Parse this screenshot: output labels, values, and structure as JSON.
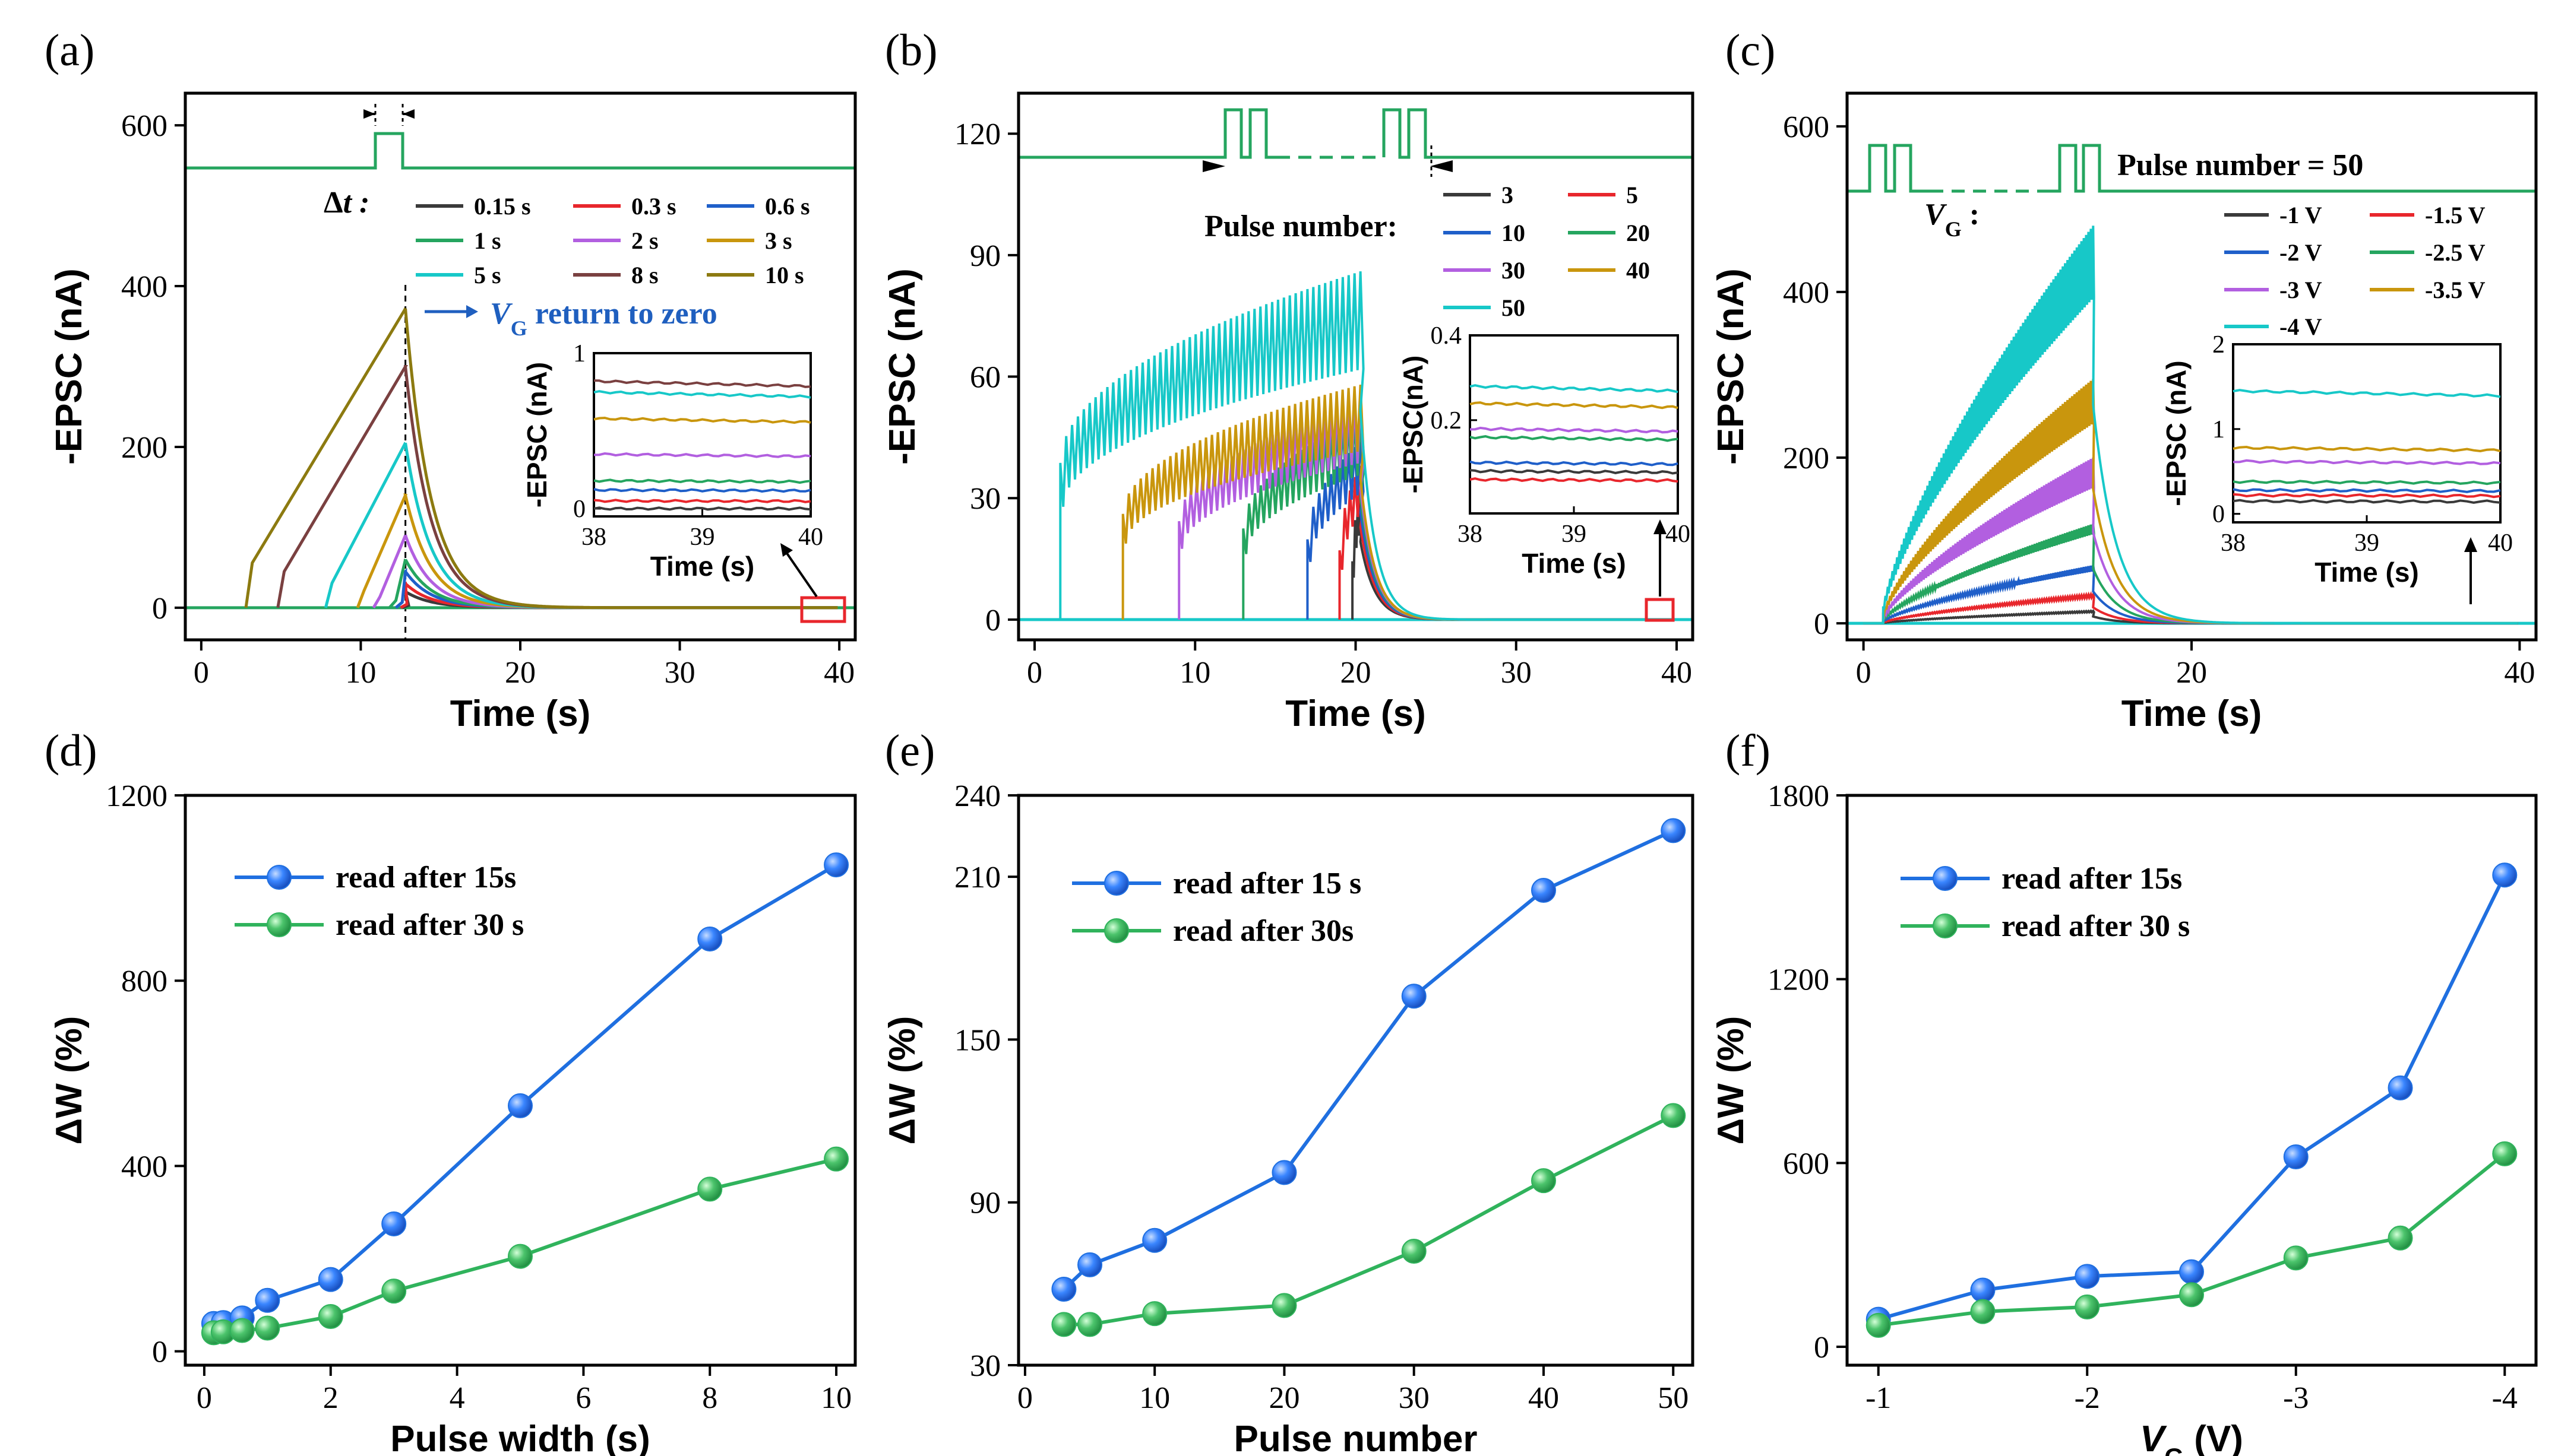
{
  "panels": {
    "a": {
      "label": "(a)"
    },
    "b": {
      "label": "(b)"
    },
    "c": {
      "label": "(c)"
    },
    "d": {
      "label": "(d)"
    },
    "e": {
      "label": "(e)"
    },
    "f": {
      "label": "(f)"
    }
  },
  "colors": {
    "black": "#3a3a3a",
    "red": "#e8262c",
    "blue": "#1f5fc9",
    "green": "#25a55f",
    "purple": "#b25fe0",
    "gold": "#c9960d",
    "teal": "#17c8c8",
    "brown": "#7a4040",
    "olive": "#8c7a10",
    "pulse": "#25a55f",
    "scatterBlue": "#1f6fe0",
    "scatterGreen": "#30b35c",
    "annot": "#1f5fbf"
  },
  "chart_data": [
    {
      "id": "a",
      "type": "line",
      "xlabel": "Time (s)",
      "ylabel": "-EPSC (nA)",
      "xlim": [
        -1,
        41
      ],
      "ylim": [
        -40,
        640
      ],
      "xticks": [
        0,
        10,
        20,
        30,
        40
      ],
      "yticks": [
        0,
        200,
        400,
        600
      ],
      "xtick_labels": [
        "0",
        "10",
        "20",
        "30",
        "40"
      ],
      "ytick_labels": [
        "0",
        "200",
        "400",
        "600"
      ],
      "legend_title": "Δt :",
      "series": [
        {
          "name": "0.15 s",
          "start": 12.6,
          "peak": 20,
          "color": "black"
        },
        {
          "name": "0.3 s",
          "start": 12.5,
          "peak": 30,
          "color": "red"
        },
        {
          "name": "0.6 s",
          "start": 12.2,
          "peak": 45,
          "color": "blue"
        },
        {
          "name": "1 s",
          "start": 11.8,
          "peak": 60,
          "color": "green"
        },
        {
          "name": "2 s",
          "start": 10.8,
          "peak": 90,
          "color": "purple"
        },
        {
          "name": "3 s",
          "start": 9.8,
          "peak": 140,
          "color": "gold"
        },
        {
          "name": "5 s",
          "start": 7.8,
          "peak": 205,
          "color": "teal"
        },
        {
          "name": "8 s",
          "start": 4.8,
          "peak": 300,
          "color": "brown"
        },
        {
          "name": "10 s",
          "start": 2.8,
          "peak": 372,
          "color": "olive"
        }
      ],
      "annotation": "V",
      "annotation_sub": "G",
      "annotation_rest": " return to zero",
      "inset": {
        "xlabel": "Time (s)",
        "ylabel": "-EPSC (nA)",
        "xticks": [
          "38",
          "39",
          "40"
        ],
        "yticks": [
          "0",
          "1"
        ],
        "levels": [
          0.0,
          0.05,
          0.12,
          0.18,
          0.35,
          0.58,
          0.75,
          0.82
        ]
      }
    },
    {
      "id": "b",
      "type": "line",
      "xlabel": "Time (s)",
      "ylabel": "-EPSC (nA)",
      "xlim": [
        -1,
        41
      ],
      "ylim": [
        -5,
        130
      ],
      "xticks": [
        0,
        10,
        20,
        30,
        40
      ],
      "yticks": [
        0,
        30,
        60,
        90,
        120
      ],
      "xtick_labels": [
        "0",
        "10",
        "20",
        "30",
        "40"
      ],
      "ytick_labels": [
        "0",
        "30",
        "60",
        "90",
        "120"
      ],
      "legend_title": "Pulse number:",
      "series": [
        {
          "name": "3",
          "start": 19.8,
          "peak": 32,
          "color": "black"
        },
        {
          "name": "5",
          "start": 19.0,
          "peak": 38,
          "color": "red"
        },
        {
          "name": "10",
          "start": 17.0,
          "peak": 44,
          "color": "blue"
        },
        {
          "name": "20",
          "start": 13.0,
          "peak": 50,
          "color": "green"
        },
        {
          "name": "30",
          "start": 9.0,
          "peak": 54,
          "color": "purple"
        },
        {
          "name": "40",
          "start": 5.5,
          "peak": 58,
          "color": "gold"
        },
        {
          "name": "50",
          "start": 1.6,
          "peak": 86,
          "color": "teal"
        }
      ],
      "inset": {
        "xlabel": "Time (s)",
        "ylabel": "-EPSC(nA)",
        "xticks": [
          "38",
          "39",
          "40"
        ],
        "yticks": [
          "0.2",
          "0.4"
        ],
        "levels": [
          0.06,
          0.08,
          0.1,
          0.16,
          0.18,
          0.24,
          0.28
        ]
      }
    },
    {
      "id": "c",
      "type": "line",
      "xlabel": "Time (s)",
      "ylabel": "-EPSC (nA)",
      "xlim": [
        -1,
        41
      ],
      "ylim": [
        -20,
        640
      ],
      "xticks": [
        0,
        20,
        40
      ],
      "yticks": [
        0,
        200,
        400,
        600
      ],
      "xtick_labels": [
        "0",
        "20",
        "40"
      ],
      "ytick_labels": [
        "0",
        "200",
        "400",
        "600"
      ],
      "legend_title": "V",
      "legend_title_sub": "G",
      "legend_title_rest": " :",
      "pulse_label": "Pulse number = 50",
      "series": [
        {
          "name": "-1 V",
          "peak": 15,
          "color": "black"
        },
        {
          "name": "-1.5 V",
          "peak": 35,
          "color": "red"
        },
        {
          "name": "-2 V",
          "peak": 70,
          "color": "blue"
        },
        {
          "name": "-2.5 V",
          "peak": 120,
          "color": "green"
        },
        {
          "name": "-3 V",
          "peak": 200,
          "color": "purple"
        },
        {
          "name": "-3.5 V",
          "peak": 295,
          "color": "gold"
        },
        {
          "name": "-4 V",
          "peak": 480,
          "color": "teal"
        }
      ],
      "inset": {
        "xlabel": "Time (s)",
        "ylabel": "-EPSC (nA)",
        "xticks": [
          "38",
          "39",
          "40"
        ],
        "yticks": [
          "0",
          "1",
          "2"
        ],
        "levels": [
          0.15,
          0.22,
          0.28,
          0.38,
          0.62,
          0.78,
          1.45
        ]
      }
    },
    {
      "id": "d",
      "type": "scatter",
      "xlabel": "Pulse width (s)",
      "ylabel": "ΔW (%)",
      "xlim": [
        -0.3,
        10.3
      ],
      "ylim": [
        -30,
        1200
      ],
      "xticks": [
        0,
        2,
        4,
        6,
        8,
        10
      ],
      "yticks": [
        0,
        400,
        800,
        1200
      ],
      "xtick_labels": [
        "0",
        "2",
        "4",
        "6",
        "8",
        "10"
      ],
      "ytick_labels": [
        "0",
        "400",
        "800",
        "1200"
      ],
      "x": [
        0.15,
        0.3,
        0.6,
        1,
        2,
        3,
        5,
        8,
        10
      ],
      "series": [
        {
          "name": "read after 15s",
          "values": [
            60,
            62,
            72,
            110,
            155,
            275,
            530,
            890,
            1050
          ],
          "color": "scatterBlue"
        },
        {
          "name": "read after 30 s",
          "values": [
            40,
            42,
            45,
            50,
            75,
            130,
            205,
            350,
            415
          ],
          "color": "scatterGreen"
        }
      ]
    },
    {
      "id": "e",
      "type": "scatter",
      "xlabel": "Pulse number",
      "ylabel": "ΔW (%)",
      "xlim": [
        -0.5,
        51.5
      ],
      "ylim": [
        30,
        240
      ],
      "xticks": [
        0,
        10,
        20,
        30,
        40,
        50
      ],
      "yticks": [
        30,
        90,
        150,
        210
      ],
      "xtick_labels": [
        "0",
        "10",
        "20",
        "30",
        "40",
        "50"
      ],
      "ytick_labels": [
        "30",
        "90",
        "150",
        "210"
      ],
      "extra_ytick": "240",
      "x": [
        3,
        5,
        10,
        20,
        30,
        40,
        50
      ],
      "series": [
        {
          "name": "read after 15 s",
          "values": [
            58,
            67,
            76,
            101,
            166,
            205,
            227
          ],
          "color": "scatterBlue"
        },
        {
          "name": "read after 30s",
          "values": [
            45,
            45,
            49,
            52,
            72,
            98,
            122
          ],
          "color": "scatterGreen"
        }
      ]
    },
    {
      "id": "f",
      "type": "scatter",
      "xlabel": "V",
      "xlabel_sub": "G",
      "xlabel_rest": " (V)",
      "ylabel": "ΔW (%)",
      "xlim": [
        -0.85,
        -4.15
      ],
      "ylim": [
        -60,
        1800
      ],
      "xticks": [
        -1,
        -2,
        -3,
        -4
      ],
      "yticks": [
        0,
        600,
        1200,
        1800
      ],
      "xtick_labels": [
        "-1",
        "-2",
        "-3",
        "-4"
      ],
      "ytick_labels": [
        "0",
        "600",
        "1200",
        "1800"
      ],
      "x": [
        -1,
        -1.5,
        -2,
        -2.5,
        -3,
        -3.5,
        -4
      ],
      "series": [
        {
          "name": "read after 15s",
          "values": [
            90,
            185,
            230,
            245,
            620,
            845,
            1540
          ],
          "color": "scatterBlue"
        },
        {
          "name": "read after 30 s",
          "values": [
            70,
            115,
            130,
            170,
            290,
            355,
            630
          ],
          "color": "scatterGreen"
        }
      ]
    }
  ]
}
